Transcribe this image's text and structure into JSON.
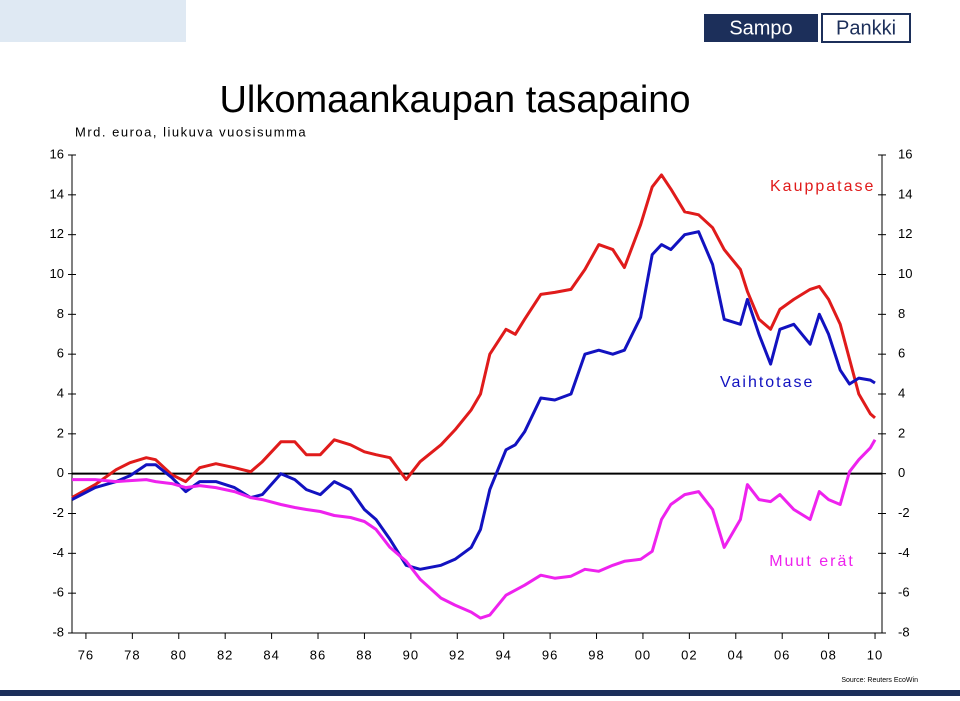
{
  "chart_data": {
    "type": "line",
    "title": "Ulkomaankaupan tasapaino",
    "subtitle": "Mrd. euroa, liukuva vuosisumma",
    "source": "Source: Reuters EcoWin",
    "logo": [
      "Sampo",
      "Pankki"
    ],
    "x": [
      1975.4,
      1976.4,
      1977.3,
      1977.9,
      1978.6,
      1979.0,
      1979.7,
      1980.3,
      1980.9,
      1981.6,
      1982.4,
      1983.1,
      1983.6,
      1984.4,
      1985.0,
      1985.5,
      1986.1,
      1986.7,
      1987.4,
      1988.0,
      1988.5,
      1989.1,
      1989.8,
      1990.4,
      1991.3,
      1991.9,
      1992.6,
      1993.0,
      1993.4,
      1994.1,
      1994.5,
      1994.9,
      1995.6,
      1996.2,
      1996.9,
      1997.5,
      1998.1,
      1998.7,
      1999.2,
      1999.9,
      2000.4,
      2000.8,
      2001.2,
      2001.8,
      2002.4,
      2003.0,
      2003.5,
      2004.2,
      2004.5,
      2005.0,
      2005.5,
      2005.9,
      2006.5,
      2007.2,
      2007.6,
      2008.0,
      2008.5,
      2008.9,
      2009.3,
      2009.8,
      2010.0
    ],
    "series": [
      {
        "name": "Kauppatase",
        "color": "#e01b1b",
        "values": [
          -1.2,
          -0.55,
          0.2,
          0.55,
          0.8,
          0.7,
          -0.05,
          -0.4,
          0.3,
          0.5,
          0.3,
          0.1,
          0.6,
          1.6,
          1.6,
          0.95,
          0.95,
          1.7,
          1.45,
          1.1,
          0.95,
          0.8,
          -0.3,
          0.6,
          1.45,
          2.2,
          3.2,
          4.0,
          6.0,
          7.25,
          7.0,
          7.75,
          9.0,
          9.1,
          9.25,
          10.25,
          11.5,
          11.25,
          10.35,
          12.5,
          14.4,
          15.0,
          14.3,
          13.15,
          13.0,
          12.35,
          11.25,
          10.25,
          9.15,
          7.75,
          7.25,
          8.25,
          8.75,
          9.25,
          9.4,
          8.75,
          7.5,
          5.75,
          4.0,
          3.0,
          2.8
        ]
      },
      {
        "name": "Vaihtotase",
        "color": "#1212c0",
        "values": [
          -1.3,
          -0.7,
          -0.4,
          -0.1,
          0.45,
          0.45,
          -0.2,
          -0.9,
          -0.4,
          -0.4,
          -0.7,
          -1.2,
          -1.05,
          0,
          -0.3,
          -0.8,
          -1.05,
          -0.4,
          -0.8,
          -1.8,
          -2.3,
          -3.3,
          -4.6,
          -4.8,
          -4.6,
          -4.3,
          -3.7,
          -2.8,
          -0.8,
          1.2,
          1.45,
          2.1,
          3.8,
          3.7,
          4.0,
          6.0,
          6.2,
          6.0,
          6.2,
          7.85,
          11.0,
          11.5,
          11.25,
          12.0,
          12.15,
          10.5,
          7.75,
          7.5,
          8.75,
          7.0,
          5.5,
          7.25,
          7.5,
          6.5,
          8.0,
          7.0,
          5.2,
          4.5,
          4.8,
          4.7,
          4.55
        ]
      },
      {
        "name": "Muut erät",
        "color": "#ee22ee",
        "values": [
          -0.3,
          -0.3,
          -0.4,
          -0.35,
          -0.3,
          -0.4,
          -0.5,
          -0.7,
          -0.6,
          -0.7,
          -0.9,
          -1.2,
          -1.3,
          -1.55,
          -1.7,
          -1.8,
          -1.9,
          -2.1,
          -2.2,
          -2.4,
          -2.8,
          -3.7,
          -4.4,
          -5.3,
          -6.25,
          -6.6,
          -6.95,
          -7.25,
          -7.1,
          -6.1,
          -5.85,
          -5.6,
          -5.1,
          -5.25,
          -5.15,
          -4.8,
          -4.9,
          -4.6,
          -4.4,
          -4.3,
          -3.9,
          -2.3,
          -1.55,
          -1.05,
          -0.9,
          -1.8,
          -3.7,
          -2.3,
          -0.55,
          -1.3,
          -1.4,
          -1.05,
          -1.8,
          -2.3,
          -0.9,
          -1.3,
          -1.55,
          0.1,
          0.7,
          1.3,
          1.7
        ]
      }
    ],
    "xlim": [
      1975.4,
      2010.3
    ],
    "xticks": [
      {
        "value": 1976,
        "label": "76"
      },
      {
        "value": 1978,
        "label": "78"
      },
      {
        "value": 1980,
        "label": "80"
      },
      {
        "value": 1982,
        "label": "82"
      },
      {
        "value": 1984,
        "label": "84"
      },
      {
        "value": 1986,
        "label": "86"
      },
      {
        "value": 1988,
        "label": "88"
      },
      {
        "value": 1990,
        "label": "90"
      },
      {
        "value": 1992,
        "label": "92"
      },
      {
        "value": 1994,
        "label": "94"
      },
      {
        "value": 1996,
        "label": "96"
      },
      {
        "value": 1998,
        "label": "98"
      },
      {
        "value": 2000,
        "label": "00"
      },
      {
        "value": 2002,
        "label": "02"
      },
      {
        "value": 2004,
        "label": "04"
      },
      {
        "value": 2006,
        "label": "06"
      },
      {
        "value": 2008,
        "label": "08"
      },
      {
        "value": 2010,
        "label": "10"
      }
    ],
    "ylim": [
      -8,
      16
    ],
    "yticks": [
      -8,
      -6,
      -4,
      -2,
      0,
      2,
      4,
      6,
      8,
      10,
      12,
      14,
      16
    ],
    "grid": false
  }
}
